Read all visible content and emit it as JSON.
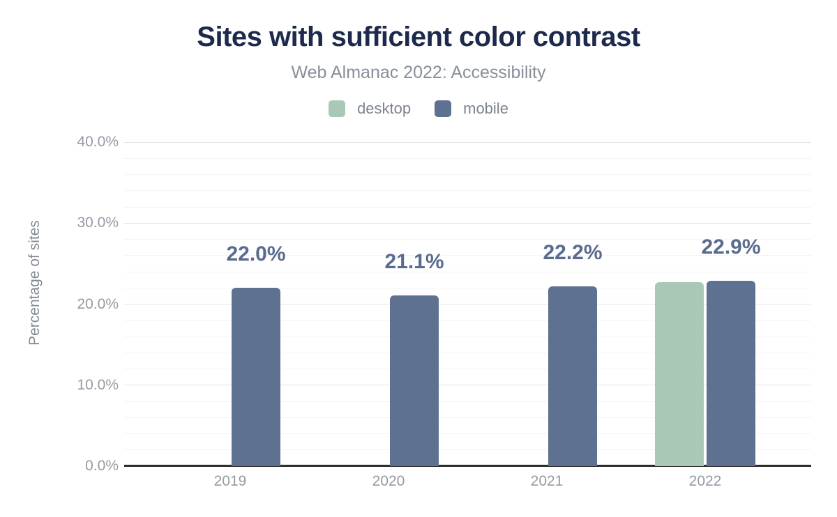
{
  "chart_data": {
    "type": "bar",
    "title": "Sites with sufficient color contrast",
    "subtitle": "Web Almanac 2022: Accessibility",
    "ylabel": "Percentage of sites",
    "xlabel": "",
    "categories": [
      "2019",
      "2020",
      "2021",
      "2022"
    ],
    "series": [
      {
        "name": "desktop",
        "color": "#a9c8b6",
        "values": [
          null,
          null,
          null,
          22.7
        ]
      },
      {
        "name": "mobile",
        "color": "#5f7190",
        "values": [
          22.0,
          21.1,
          22.2,
          22.9
        ]
      }
    ],
    "annotations": [
      "22.0%",
      "21.1%",
      "22.2%",
      "22.9%"
    ],
    "ylim": [
      0,
      40
    ],
    "yticks": [
      "0.0%",
      "10.0%",
      "20.0%",
      "30.0%",
      "40.0%"
    ],
    "ytick_step_major": 10,
    "ytick_step_minor": 2,
    "grid": true,
    "legend_position": "top",
    "colors": {
      "title": "#1e2a4c",
      "subtitle": "#888f99",
      "legend_text": "#7d848e",
      "axis_text": "#959ba3",
      "axis_title": "#848a94",
      "annotation": "#5a6b8e",
      "baseline": "#2d2d2d",
      "gridline_major": "#e5e5e5",
      "gridline_minor": "#f4f4f4",
      "background": "#ffffff"
    }
  }
}
